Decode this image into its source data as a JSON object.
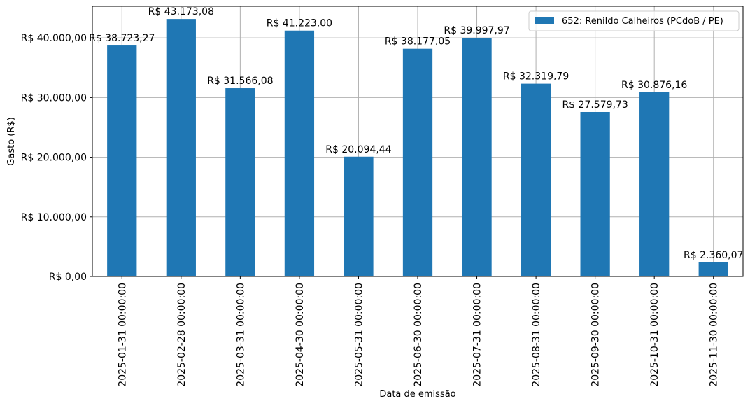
{
  "chart_data": {
    "type": "bar",
    "xlabel": "Data de emissão",
    "ylabel": "Gasto (R$)",
    "ylim": [
      0,
      45300
    ],
    "yticks": [
      0,
      10000,
      20000,
      30000,
      40000
    ],
    "ytick_labels": [
      "R$ 0,00",
      "R$ 10.000,00",
      "R$ 20.000,00",
      "R$ 30.000,00",
      "R$ 40.000,00"
    ],
    "grid": true,
    "legend_position": "top-right",
    "categories": [
      "2025-01-31 00:00:00",
      "2025-02-28 00:00:00",
      "2025-03-31 00:00:00",
      "2025-04-30 00:00:00",
      "2025-05-31 00:00:00",
      "2025-06-30 00:00:00",
      "2025-07-31 00:00:00",
      "2025-08-31 00:00:00",
      "2025-09-30 00:00:00",
      "2025-10-31 00:00:00",
      "2025-11-30 00:00:00"
    ],
    "series": [
      {
        "name": "652: Renildo Calheiros (PCdoB / PE)",
        "color": "#1f77b4",
        "values": [
          38723.27,
          43173.08,
          31566.08,
          41223.0,
          20094.44,
          38177.05,
          39997.97,
          32319.79,
          27579.73,
          30876.16,
          2360.07
        ],
        "labels": [
          "R$ 38.723,27",
          "R$ 43.173,08",
          "R$ 31.566,08",
          "R$ 41.223,00",
          "R$ 20.094,44",
          "R$ 38.177,05",
          "R$ 39.997,97",
          "R$ 32.319,79",
          "R$ 27.579,73",
          "R$ 30.876,16",
          "R$ 2.360,07"
        ]
      }
    ]
  }
}
